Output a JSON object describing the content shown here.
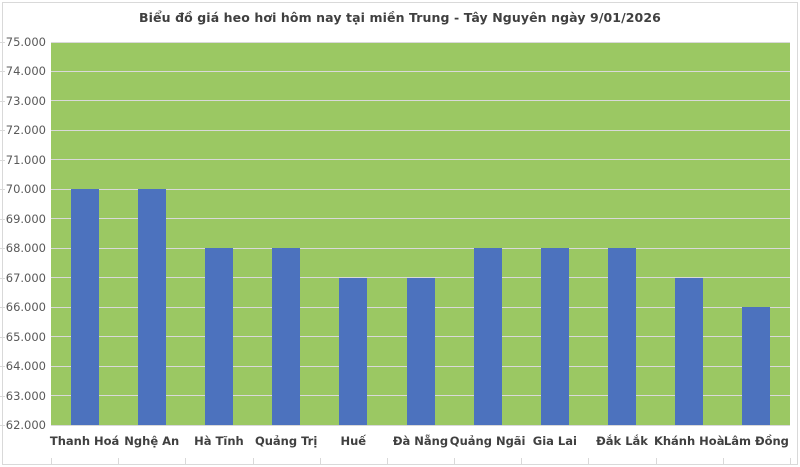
{
  "header": {
    "title": "Biểu đồ giá heo hơi hôm nay tại miền Trung - Tây Nguyên ngày 9/01/2026"
  },
  "colors": {
    "plot_background": "#9bc863",
    "bar": "#4c72be",
    "gridline": "#d9d9d9",
    "axis_line": "#d9d9d9",
    "tick": "#d9d9d9",
    "chart_border": "#d9d9d9",
    "title_text": "#404040",
    "x_label_text": "#404040",
    "y_label_text": "#595959"
  },
  "chart_data": {
    "type": "bar",
    "title": "Biểu đồ giá heo hơi hôm nay tại miền Trung - Tây Nguyên ngày 9/01/2026",
    "categories": [
      "Thanh Hoá",
      "Nghệ An",
      "Hà Tĩnh",
      "Quảng Trị",
      "Huế",
      "Đà Nẵng",
      "Quảng Ngãi",
      "Gia Lai",
      "Đắk Lắk",
      "Khánh Hoà",
      "Lâm Đồng"
    ],
    "values": [
      70000,
      70000,
      68000,
      68000,
      67000,
      67000,
      68000,
      68000,
      68000,
      67000,
      66000
    ],
    "xlabel": "",
    "ylabel": "",
    "ylim": [
      62000,
      75000
    ],
    "y_tick_step": 1000,
    "y_tick_labels": [
      "62.000",
      "63.000",
      "64.000",
      "65.000",
      "66.000",
      "67.000",
      "68.000",
      "69.000",
      "70.000",
      "71.000",
      "72.000",
      "73.000",
      "74.000",
      "75.000"
    ],
    "grid": "horizontal",
    "legend_position": "none",
    "bar_color": "#4c72be",
    "plot_background": "#9bc863"
  }
}
